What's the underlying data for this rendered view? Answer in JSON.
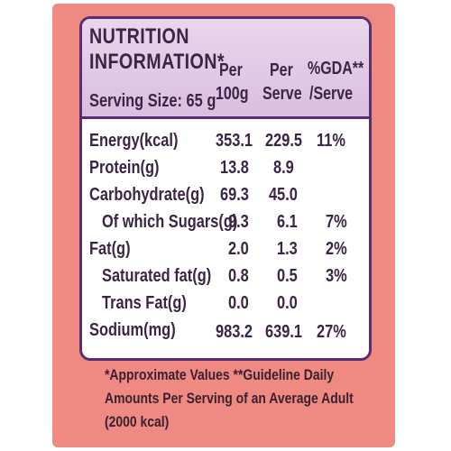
{
  "label": {
    "title_line1": "NUTRITION",
    "title_line2": "INFORMATION*",
    "serving_size": "Serving Size: 65 g",
    "columns": [
      {
        "line1": "Per",
        "line2": "100g"
      },
      {
        "line1": "Per",
        "line2": "Serve"
      },
      {
        "line1": "%GDA**",
        "line2": "/Serve"
      }
    ],
    "rows": [
      {
        "name": "Energy(kcal)",
        "per100g": "353.1",
        "perServe": "229.5",
        "gda": "11%"
      },
      {
        "name": "Protein(g)",
        "per100g": "13.8",
        "perServe": "8.9",
        "gda": ""
      },
      {
        "name": "Carbohydrate(g)",
        "per100g": "69.3",
        "perServe": "45.0",
        "gda": ""
      },
      {
        "name": "Of which Sugars(g)",
        "per100g": "9.3",
        "perServe": "6.1",
        "gda": "7%"
      },
      {
        "name": "Fat(g)",
        "per100g": "2.0",
        "perServe": "1.3",
        "gda": "2%"
      },
      {
        "name": "Saturated fat(g)",
        "per100g": "0.8",
        "perServe": "0.5",
        "gda": "3%"
      },
      {
        "name": "Trans Fat(g)",
        "per100g": "0.0",
        "perServe": "0.0",
        "gda": ""
      },
      {
        "name": "Sodium(mg)",
        "per100g": "983.2",
        "perServe": "639.1",
        "gda": "27%"
      }
    ],
    "footnote_lines": [
      "*Approximate Values **Guideline Daily",
      "Amounts Per Serving of an Average Adult",
      "(2000 kcal)"
    ]
  },
  "colors": {
    "packaging": "#ef8a82",
    "panel_border": "#5a2e72",
    "header_fill": "#e8d7ec",
    "text": "#3b2446"
  }
}
